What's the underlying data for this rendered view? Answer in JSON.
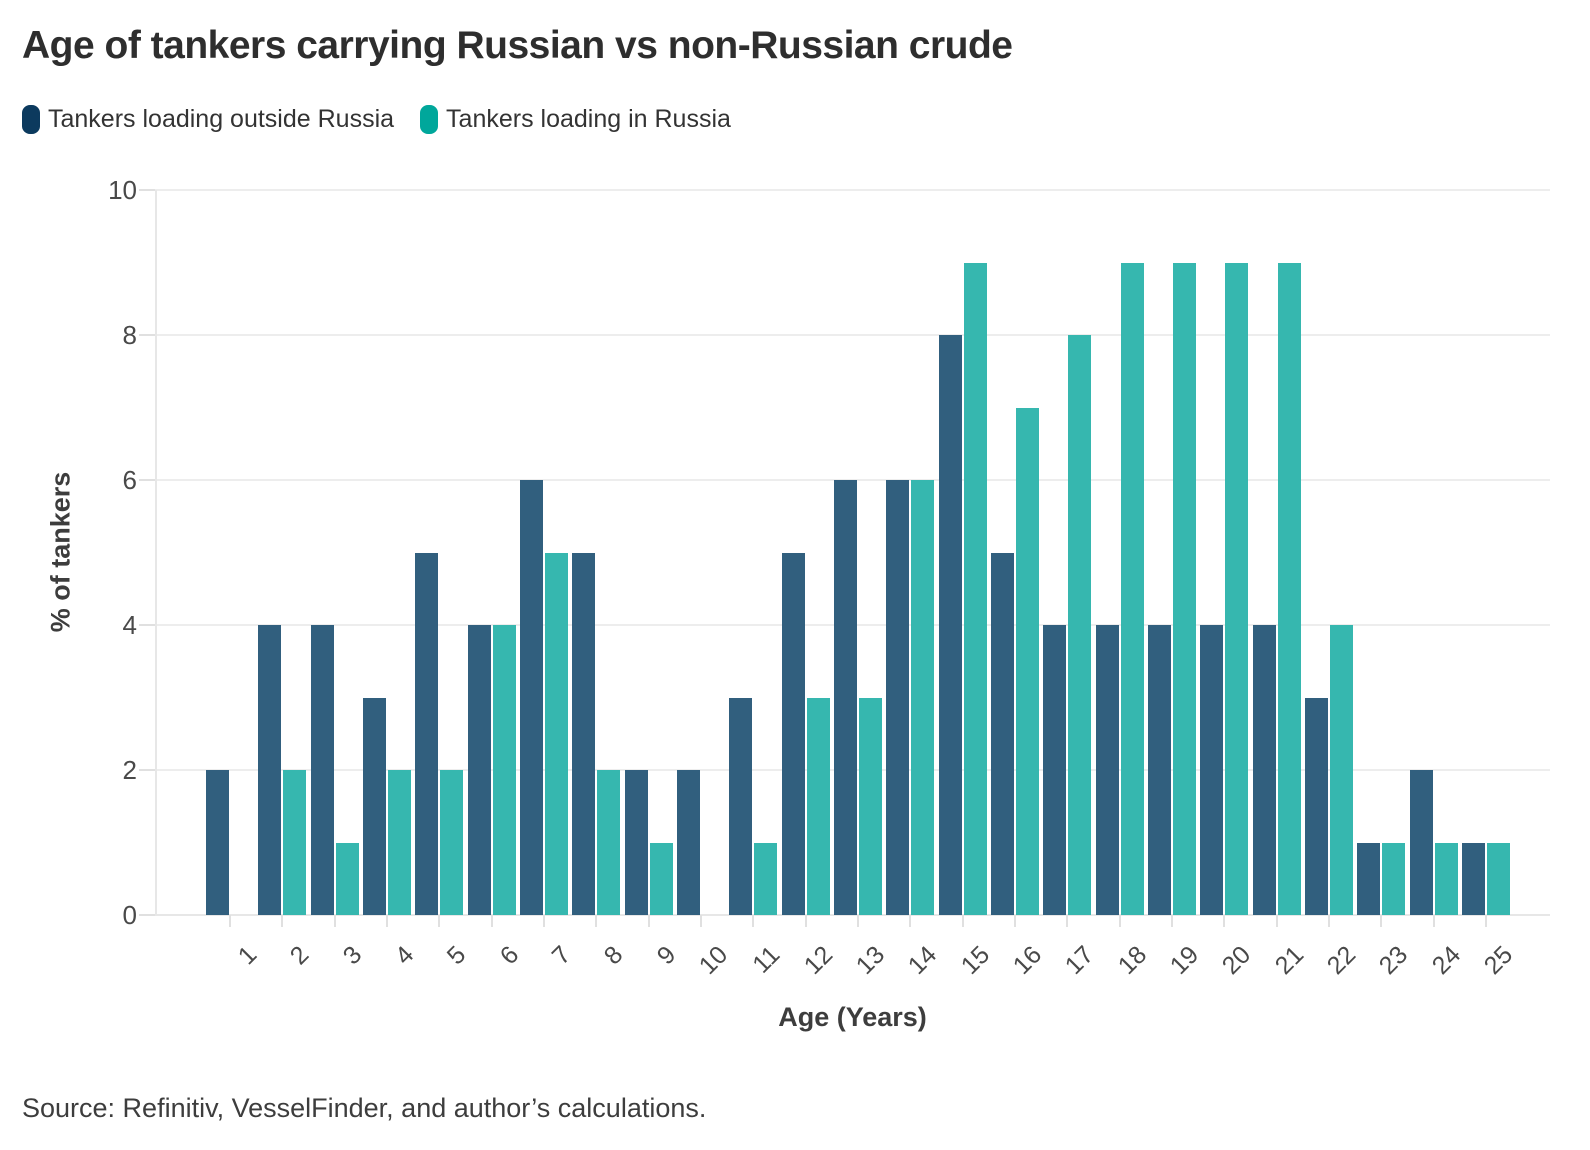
{
  "header": {
    "title": "Age of tankers carrying Russian vs non-Russian crude"
  },
  "legend": {
    "items": [
      {
        "label": "Tankers loading outside Russia",
        "swatch_color": "#0c3a5e"
      },
      {
        "label": "Tankers loading in Russia",
        "swatch_color": "#00a79b"
      }
    ]
  },
  "chart_data": {
    "type": "bar",
    "title": "Age of tankers carrying Russian vs non-Russian crude",
    "xlabel": "Age (Years)",
    "ylabel": "% of tankers",
    "ylim": [
      0,
      10
    ],
    "yticks": [
      0,
      2,
      4,
      6,
      8,
      10
    ],
    "grid": true,
    "legend_position": "top-left",
    "categories": [
      1,
      2,
      3,
      4,
      5,
      6,
      7,
      8,
      9,
      10,
      11,
      12,
      13,
      14,
      15,
      16,
      17,
      18,
      19,
      20,
      21,
      22,
      23,
      24,
      25
    ],
    "series": [
      {
        "name": "Tankers loading outside Russia",
        "bar_color": "#315f7e",
        "legend_color": "#0c3a5e",
        "values": [
          2,
          4,
          4,
          3,
          5,
          4,
          6,
          5,
          2,
          2,
          3,
          5,
          6,
          6,
          8,
          5,
          4,
          4,
          4,
          4,
          4,
          3,
          1,
          2,
          1
        ]
      },
      {
        "name": "Tankers loading in Russia",
        "bar_color": "#36b7af",
        "legend_color": "#00a79b",
        "values": [
          0,
          2,
          1,
          2,
          2,
          4,
          5,
          2,
          1,
          0,
          1,
          3,
          3,
          6,
          9,
          7,
          8,
          9,
          9,
          9,
          9,
          4,
          1,
          1,
          1
        ]
      }
    ]
  },
  "footer": {
    "source": "Source: Refinitiv, VesselFinder, and author’s calculations."
  },
  "colors": {
    "background": "#ffffff",
    "grid": "#ededed",
    "axis": "#e7e7e7",
    "tick": "#e0e0e0",
    "title_text": "#2e2e2e",
    "axis_text": "#494949",
    "axis_title_text": "#3d3d3d",
    "source_text": "#3d3d3d"
  }
}
